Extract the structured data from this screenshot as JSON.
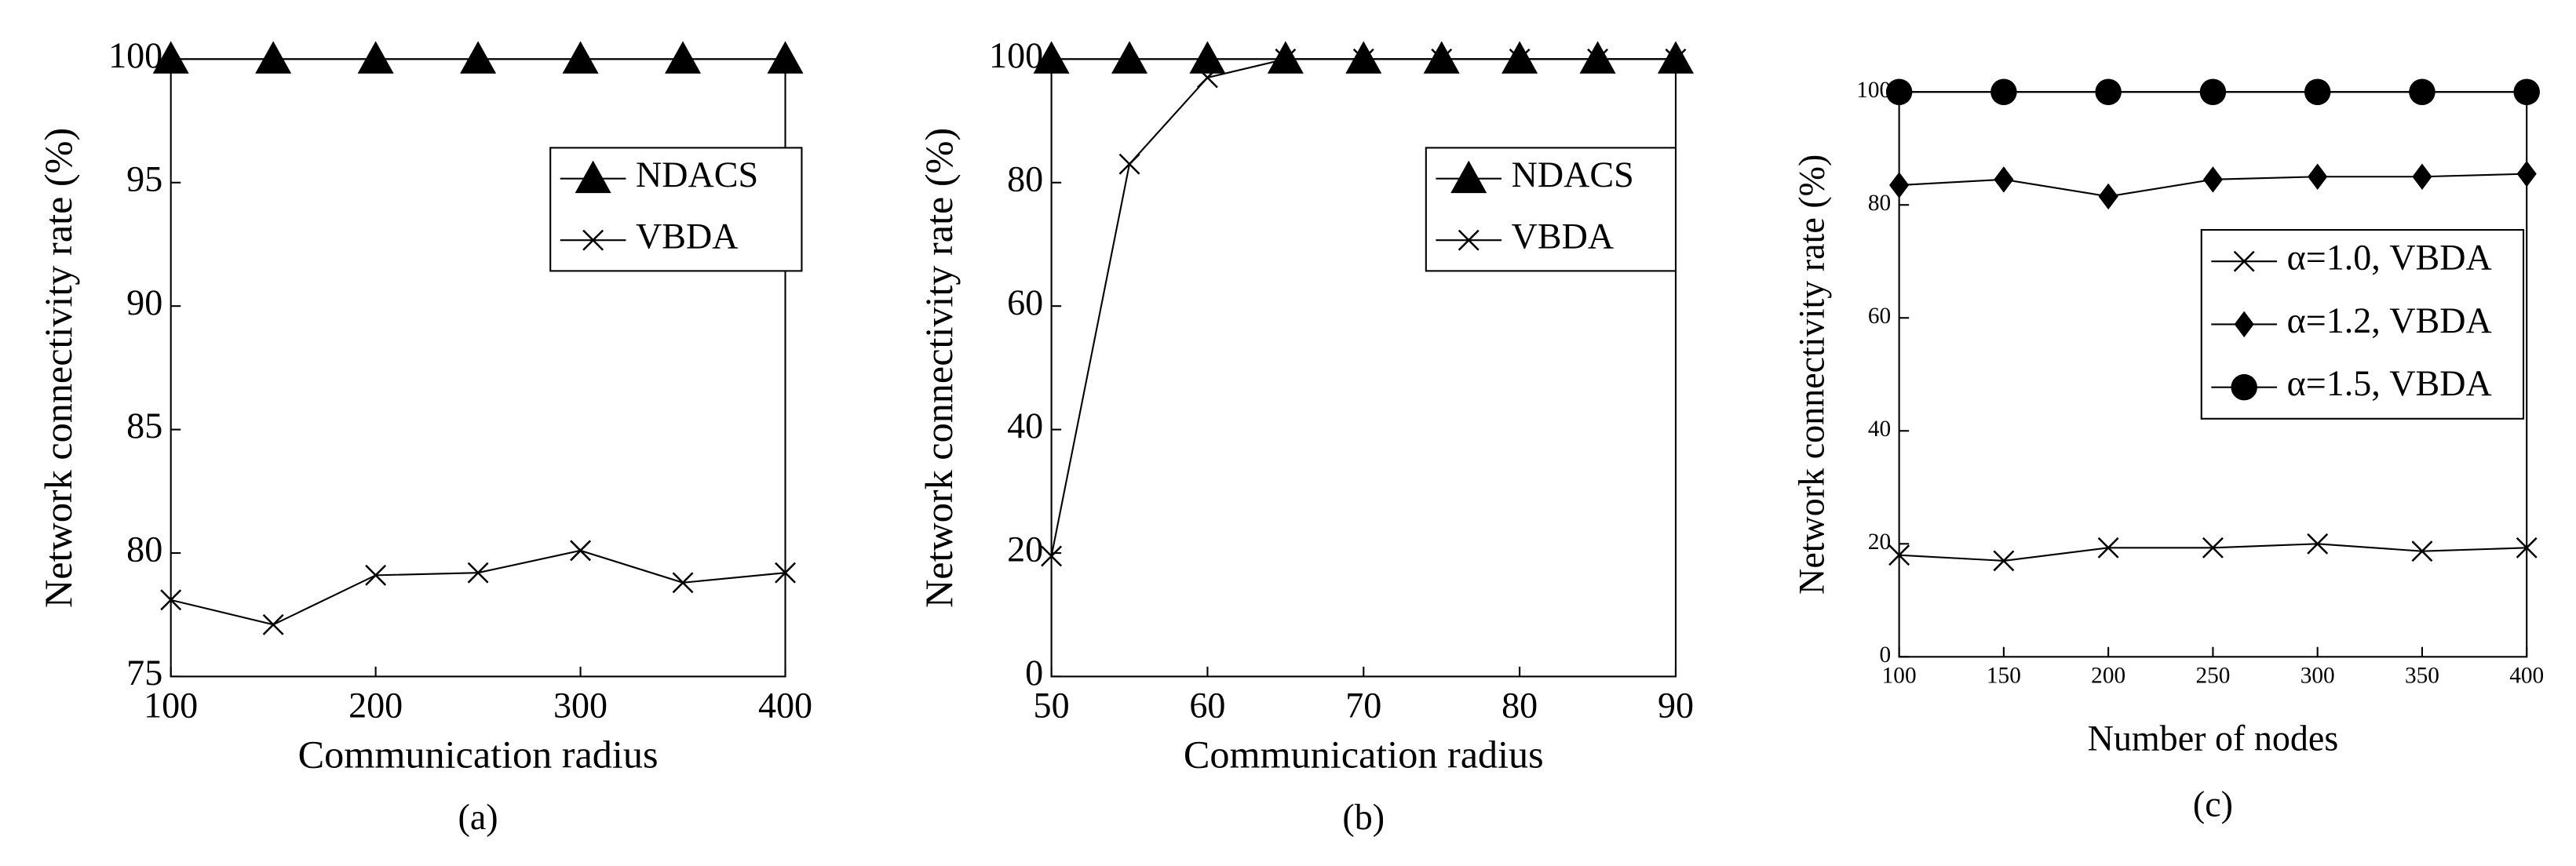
{
  "chart_data": [
    {
      "type": "line",
      "caption": "(a)",
      "xlabel": "Communication radius",
      "ylabel": "Network connectivity rate (%)",
      "x": [
        100,
        150,
        200,
        250,
        300,
        350,
        400
      ],
      "xlim": [
        100,
        400
      ],
      "xticks": [
        100,
        200,
        300,
        400
      ],
      "ylim": [
        75,
        100
      ],
      "yticks": [
        75,
        80,
        85,
        90,
        95,
        100
      ],
      "legend": "upper right",
      "grid": false,
      "series": [
        {
          "name": "NDACS",
          "color": "#000000",
          "marker": "triangle",
          "values": [
            100,
            100,
            100,
            100,
            100,
            100,
            100
          ]
        },
        {
          "name": "VBDA",
          "color": "#000000",
          "marker": "x",
          "values": [
            78.1,
            77.1,
            79.1,
            79.2,
            80.1,
            78.8,
            79.2
          ]
        }
      ]
    },
    {
      "type": "line",
      "caption": "(b)",
      "xlabel": "Communication radius",
      "ylabel": "Network connectivity rate  (%)",
      "x": [
        50,
        55,
        60,
        65,
        70,
        75,
        80,
        85,
        90
      ],
      "xlim": [
        50,
        90
      ],
      "xticks": [
        50,
        60,
        70,
        80,
        90
      ],
      "ylim": [
        0,
        100
      ],
      "yticks": [
        0,
        20,
        40,
        60,
        80,
        100
      ],
      "legend": "upper right",
      "grid": false,
      "series": [
        {
          "name": "NDACS",
          "color": "#000000",
          "marker": "triangle",
          "values": [
            100,
            100,
            100,
            100,
            100,
            100,
            100,
            100,
            100
          ]
        },
        {
          "name": "VBDA",
          "color": "#000000",
          "marker": "x",
          "values": [
            19.5,
            83,
            97,
            100,
            100,
            100,
            100,
            100,
            100
          ]
        }
      ]
    },
    {
      "type": "line",
      "caption": "(c)",
      "xlabel": "Number of nodes",
      "ylabel": "Network connectivity rate (%)",
      "x": [
        100,
        150,
        200,
        250,
        300,
        350,
        400
      ],
      "xlim": [
        100,
        400
      ],
      "xticks": [
        100,
        150,
        200,
        250,
        300,
        350,
        400
      ],
      "ylim": [
        0,
        100
      ],
      "yticks": [
        0,
        20,
        40,
        60,
        80,
        100
      ],
      "legend": "upper right",
      "grid": false,
      "series": [
        {
          "name": "α=1.0, VBDA",
          "color": "#000000",
          "marker": "x",
          "values": [
            18,
            17,
            19.3,
            19.3,
            20,
            18.7,
            19.3
          ]
        },
        {
          "name": "α=1.2, VBDA",
          "color": "#000000",
          "marker": "diamond",
          "values": [
            83.5,
            84.5,
            81.5,
            84.5,
            85,
            85,
            85.5
          ]
        },
        {
          "name": "α=1.5, VBDA",
          "color": "#000000",
          "marker": "circle",
          "values": [
            100,
            100,
            100,
            100,
            100,
            100,
            100
          ]
        }
      ]
    }
  ]
}
